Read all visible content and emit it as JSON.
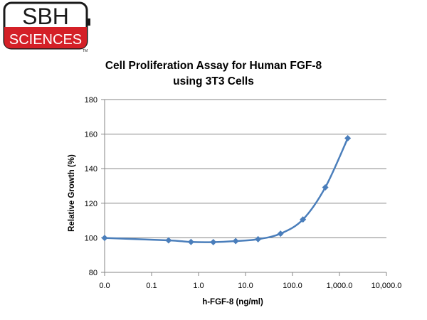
{
  "logo": {
    "top_text": "SBH",
    "bottom_text": "SCIENCES",
    "trademark": "TM",
    "colors": {
      "red": "#d42027",
      "black": "#1a1a1a"
    }
  },
  "chart_data": {
    "type": "line",
    "title": "Cell Proliferation Assay for Human FGF-8 using 3T3 Cells",
    "xlabel": "h-FGF-8 (ng/ml)",
    "ylabel": "Relative Growth (%)",
    "x_scale": "log",
    "x_tick_labels": [
      "0.0",
      "0.1",
      "1.0",
      "10.0",
      "100.0",
      "1,000.0",
      "10,000.0"
    ],
    "y_ticks": [
      80,
      100,
      120,
      140,
      160,
      180
    ],
    "ylim": [
      80,
      180
    ],
    "grid": "horizontal",
    "legend": "none",
    "series_color": "#4a7ebb",
    "x": [
      0.01,
      0.23,
      0.69,
      2.06,
      6.17,
      18.5,
      55.6,
      167,
      500,
      1500
    ],
    "values": [
      99.9,
      98.5,
      97.6,
      97.5,
      98.1,
      99.2,
      102.4,
      110.6,
      129.2,
      157.6
    ]
  }
}
